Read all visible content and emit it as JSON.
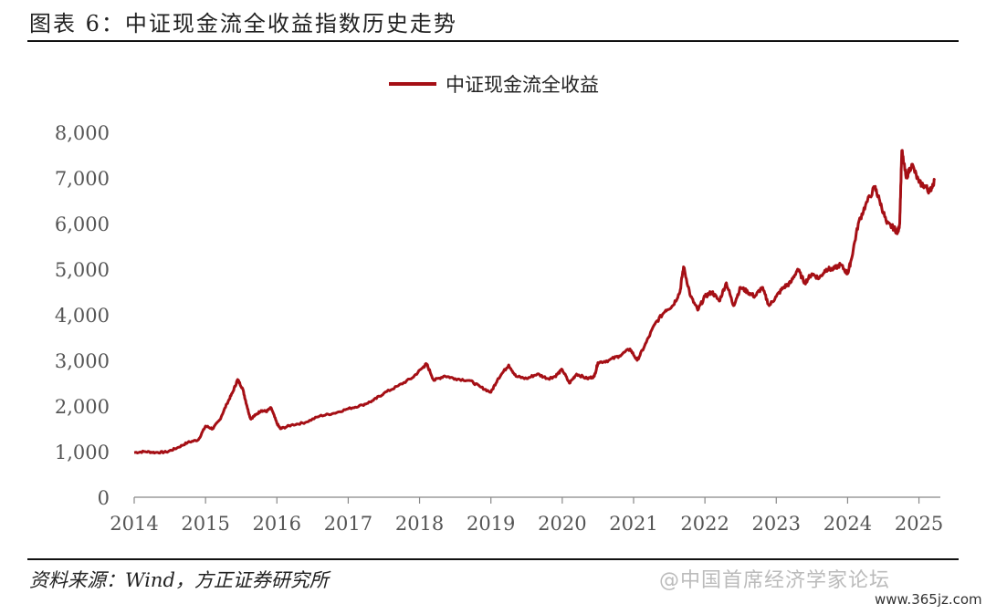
{
  "figure": {
    "title": "图表 6：中证现金流全收益指数历史走势",
    "source": "资料来源：Wind，方正证券研究所",
    "watermark": "@中国首席经济学家论坛",
    "watermark_url": "www.365jz.com",
    "line_color": "#a50f15"
  },
  "chart_data": {
    "type": "line",
    "title": "",
    "xlabel": "",
    "ylabel": "",
    "xlim": [
      2014,
      2025.4
    ],
    "ylim": [
      0,
      8000
    ],
    "grid": false,
    "legend": "top-center",
    "x_ticks": [
      "2014",
      "2015",
      "2016",
      "2017",
      "2018",
      "2019",
      "2020",
      "2021",
      "2022",
      "2023",
      "2024",
      "2025"
    ],
    "y_ticks": [
      "0",
      "1,000",
      "2,000",
      "3,000",
      "4,000",
      "5,000",
      "6,000",
      "7,000",
      "8,000"
    ],
    "series": [
      {
        "name": "中证现金流全收益",
        "points": [
          [
            2014.0,
            980
          ],
          [
            2014.15,
            1000
          ],
          [
            2014.3,
            980
          ],
          [
            2014.45,
            990
          ],
          [
            2014.6,
            1080
          ],
          [
            2014.75,
            1200
          ],
          [
            2014.9,
            1260
          ],
          [
            2015.0,
            1560
          ],
          [
            2015.1,
            1500
          ],
          [
            2015.2,
            1700
          ],
          [
            2015.3,
            2050
          ],
          [
            2015.38,
            2300
          ],
          [
            2015.45,
            2580
          ],
          [
            2015.52,
            2380
          ],
          [
            2015.58,
            2000
          ],
          [
            2015.63,
            1720
          ],
          [
            2015.7,
            1800
          ],
          [
            2015.78,
            1900
          ],
          [
            2015.85,
            1880
          ],
          [
            2015.92,
            1960
          ],
          [
            2016.0,
            1620
          ],
          [
            2016.05,
            1500
          ],
          [
            2016.2,
            1580
          ],
          [
            2016.4,
            1640
          ],
          [
            2016.6,
            1780
          ],
          [
            2016.8,
            1840
          ],
          [
            2017.0,
            1940
          ],
          [
            2017.2,
            2020
          ],
          [
            2017.35,
            2120
          ],
          [
            2017.5,
            2280
          ],
          [
            2017.7,
            2440
          ],
          [
            2017.9,
            2620
          ],
          [
            2018.05,
            2850
          ],
          [
            2018.1,
            2920
          ],
          [
            2018.2,
            2560
          ],
          [
            2018.35,
            2660
          ],
          [
            2018.5,
            2600
          ],
          [
            2018.7,
            2560
          ],
          [
            2018.85,
            2420
          ],
          [
            2019.0,
            2300
          ],
          [
            2019.1,
            2600
          ],
          [
            2019.25,
            2900
          ],
          [
            2019.35,
            2650
          ],
          [
            2019.5,
            2600
          ],
          [
            2019.65,
            2700
          ],
          [
            2019.8,
            2600
          ],
          [
            2019.9,
            2650
          ],
          [
            2020.0,
            2800
          ],
          [
            2020.1,
            2500
          ],
          [
            2020.2,
            2700
          ],
          [
            2020.35,
            2600
          ],
          [
            2020.45,
            2650
          ],
          [
            2020.5,
            2950
          ],
          [
            2020.65,
            3000
          ],
          [
            2020.8,
            3100
          ],
          [
            2020.95,
            3250
          ],
          [
            2021.05,
            3000
          ],
          [
            2021.15,
            3300
          ],
          [
            2021.3,
            3800
          ],
          [
            2021.45,
            4100
          ],
          [
            2021.55,
            4200
          ],
          [
            2021.65,
            4500
          ],
          [
            2021.7,
            5050
          ],
          [
            2021.8,
            4400
          ],
          [
            2021.9,
            4100
          ],
          [
            2022.0,
            4400
          ],
          [
            2022.1,
            4500
          ],
          [
            2022.2,
            4300
          ],
          [
            2022.3,
            4700
          ],
          [
            2022.4,
            4200
          ],
          [
            2022.5,
            4600
          ],
          [
            2022.6,
            4500
          ],
          [
            2022.7,
            4400
          ],
          [
            2022.8,
            4600
          ],
          [
            2022.9,
            4200
          ],
          [
            2023.0,
            4400
          ],
          [
            2023.1,
            4600
          ],
          [
            2023.2,
            4700
          ],
          [
            2023.3,
            5000
          ],
          [
            2023.4,
            4700
          ],
          [
            2023.5,
            4900
          ],
          [
            2023.6,
            4800
          ],
          [
            2023.7,
            5000
          ],
          [
            2023.8,
            5000
          ],
          [
            2023.9,
            5100
          ],
          [
            2024.0,
            4900
          ],
          [
            2024.05,
            5200
          ],
          [
            2024.15,
            6000
          ],
          [
            2024.25,
            6400
          ],
          [
            2024.38,
            6800
          ],
          [
            2024.45,
            6500
          ],
          [
            2024.55,
            6000
          ],
          [
            2024.65,
            5900
          ],
          [
            2024.7,
            5800
          ],
          [
            2024.73,
            6000
          ],
          [
            2024.76,
            7600
          ],
          [
            2024.82,
            7000
          ],
          [
            2024.9,
            7300
          ],
          [
            2025.0,
            6900
          ],
          [
            2025.1,
            6800
          ],
          [
            2025.15,
            6700
          ],
          [
            2025.22,
            6950
          ]
        ]
      }
    ]
  }
}
